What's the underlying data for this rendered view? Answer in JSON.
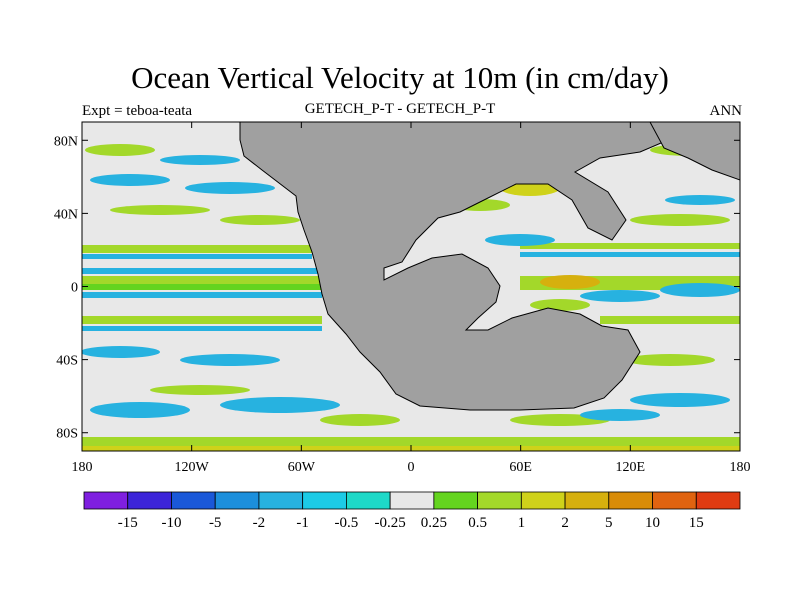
{
  "title": "Ocean Vertical Velocity at 10m (in cm/day)",
  "left_subtitle": "Expt = teboa-teata",
  "center_subtitle": "GETECH_P-T - GETECH_P-T",
  "right_subtitle": "ANN",
  "lat_ticks": [
    {
      "label": "80N",
      "value": 80
    },
    {
      "label": "40N",
      "value": 40
    },
    {
      "label": "0",
      "value": 0
    },
    {
      "label": "40S",
      "value": -40
    },
    {
      "label": "80S",
      "value": -80
    }
  ],
  "lon_ticks": [
    {
      "label": "180",
      "value": -180
    },
    {
      "label": "120W",
      "value": -120
    },
    {
      "label": "60W",
      "value": -60
    },
    {
      "label": "0",
      "value": 0
    },
    {
      "label": "60E",
      "value": 60
    },
    {
      "label": "120E",
      "value": 120
    },
    {
      "label": "180",
      "value": 180
    }
  ],
  "colorbar": {
    "colors": [
      "#7f1fe0",
      "#3c24d8",
      "#1a58d8",
      "#1c8fdc",
      "#27b2e0",
      "#1ccbe6",
      "#1ed9c8",
      "#e8e8e8",
      "#64d41f",
      "#a3d82a",
      "#cfd21a",
      "#d6b00e",
      "#d98c08",
      "#e06310",
      "#e03b12"
    ],
    "labels": [
      "-15",
      "-10",
      "-5",
      "-2",
      "-1",
      "-0.5",
      "-0.25",
      "0.25",
      "0.5",
      "1",
      "2",
      "5",
      "10",
      "15"
    ]
  },
  "map_colors": {
    "land": "#a0a0a0",
    "ocean_neutral": "#e8e8e8",
    "coast": "#000000"
  }
}
